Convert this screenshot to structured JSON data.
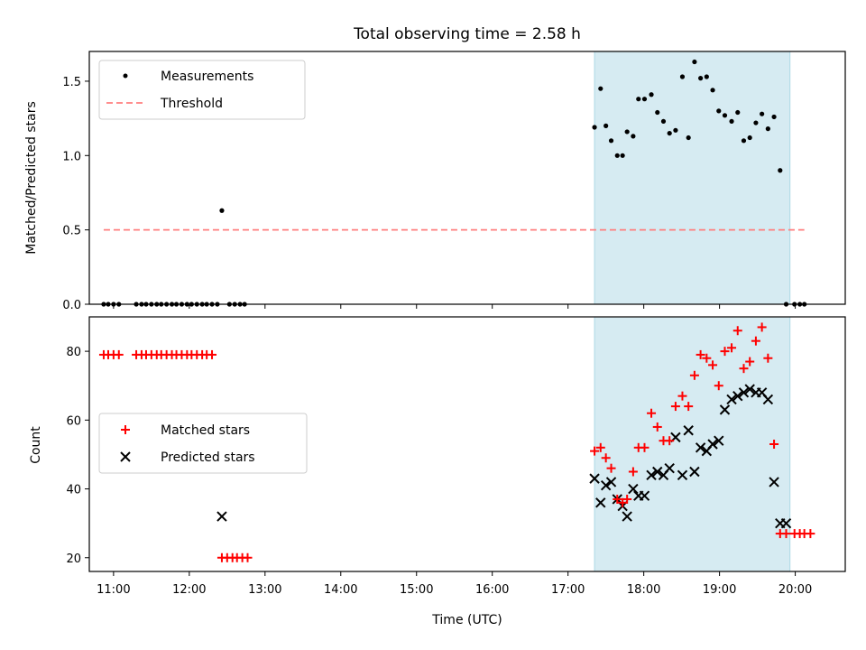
{
  "chart_data": [
    {
      "type": "scatter",
      "panel": "top",
      "title": "Total observing time = 2.58 h",
      "ylabel": "Matched/Predicted stars",
      "xlabel": "",
      "ylim": [
        0,
        1.7
      ],
      "xlim": [
        10.68,
        20.66
      ],
      "yticks": [
        0.0,
        0.5,
        1.0,
        1.5
      ],
      "ytick_labels": [
        "0.0",
        "0.5",
        "1.0",
        "1.5"
      ],
      "highlight": {
        "x_start": 17.35,
        "x_end": 19.93,
        "color": "#add8e6"
      },
      "legend": {
        "position": "top-left",
        "entries": [
          "Measurements",
          "Threshold"
        ]
      },
      "series": [
        {
          "name": "Measurements",
          "color": "#000000",
          "marker": "dot",
          "x": [
            10.87,
            10.93,
            11.0,
            11.07,
            11.3,
            11.37,
            11.43,
            11.5,
            11.57,
            11.63,
            11.7,
            11.77,
            11.83,
            11.9,
            11.97,
            12.03,
            12.1,
            12.17,
            12.23,
            12.3,
            12.37,
            12.43,
            12.53,
            12.6,
            12.67,
            12.73,
            17.35,
            17.43,
            17.5,
            17.57,
            17.65,
            17.72,
            17.78,
            17.86,
            17.93,
            18.01,
            18.1,
            18.18,
            18.26,
            18.34,
            18.42,
            18.51,
            18.59,
            18.67,
            18.75,
            18.83,
            18.91,
            18.99,
            19.07,
            19.16,
            19.24,
            19.32,
            19.4,
            19.48,
            19.56,
            19.64,
            19.72,
            19.8,
            19.88
          ],
          "y": [
            0,
            0,
            0,
            0,
            0,
            0,
            0,
            0,
            0,
            0,
            0,
            0,
            0,
            0,
            0,
            0,
            0,
            0,
            0,
            0,
            0,
            0.63,
            0,
            0,
            0,
            0,
            1.19,
            1.45,
            1.2,
            1.1,
            1.0,
            1.0,
            1.16,
            1.13,
            1.38,
            1.38,
            1.41,
            1.29,
            1.23,
            1.15,
            1.17,
            1.53,
            1.12,
            1.63,
            1.52,
            1.53,
            1.44,
            1.3,
            1.27,
            1.23,
            1.29,
            1.1,
            1.12,
            1.22,
            1.28,
            1.18,
            1.26,
            0.9,
            0
          ]
        },
        {
          "name": "Threshold",
          "color": "#ff7f7f",
          "style": "dashed",
          "x": [
            10.87,
            20.12
          ],
          "y": [
            0.5,
            0.5
          ]
        }
      ],
      "extra_points_after": {
        "x": [
          19.99,
          20.06,
          20.12
        ],
        "y": [
          0,
          0,
          0
        ]
      }
    },
    {
      "type": "scatter",
      "panel": "bottom",
      "title": "",
      "ylabel": "Count",
      "xlabel": "Time (UTC)",
      "ylim": [
        16,
        90
      ],
      "xlim": [
        10.68,
        20.66
      ],
      "yticks": [
        20,
        40,
        60,
        80
      ],
      "ytick_labels": [
        "20",
        "40",
        "60",
        "80"
      ],
      "xticks": [
        11,
        12,
        13,
        14,
        15,
        16,
        17,
        18,
        19,
        20
      ],
      "xtick_labels": [
        "11:00",
        "12:00",
        "13:00",
        "14:00",
        "15:00",
        "16:00",
        "17:00",
        "18:00",
        "19:00",
        "20:00"
      ],
      "highlight": {
        "x_start": 17.35,
        "x_end": 19.93,
        "color": "#add8e6"
      },
      "legend": {
        "position": "center-left",
        "entries": [
          "Matched stars",
          "Predicted stars"
        ]
      },
      "series": [
        {
          "name": "Matched stars",
          "color": "#ff0000",
          "marker": "plus",
          "x": [
            10.87,
            10.93,
            11.0,
            11.07,
            11.3,
            11.37,
            11.43,
            11.5,
            11.57,
            11.63,
            11.7,
            11.77,
            11.83,
            11.9,
            11.97,
            12.03,
            12.1,
            12.17,
            12.23,
            12.3,
            12.43,
            12.5,
            12.57,
            12.63,
            12.7,
            12.77,
            17.35,
            17.43,
            17.5,
            17.57,
            17.65,
            17.72,
            17.78,
            17.86,
            17.93,
            18.01,
            18.1,
            18.18,
            18.26,
            18.34,
            18.42,
            18.51,
            18.59,
            18.67,
            18.75,
            18.83,
            18.91,
            18.99,
            19.07,
            19.16,
            19.24,
            19.32,
            19.4,
            19.48,
            19.56,
            19.64,
            19.72,
            19.8,
            19.88,
            19.99,
            20.06,
            20.12,
            20.2
          ],
          "y": [
            79,
            79,
            79,
            79,
            79,
            79,
            79,
            79,
            79,
            79,
            79,
            79,
            79,
            79,
            79,
            79,
            79,
            79,
            79,
            79,
            20,
            20,
            20,
            20,
            20,
            20,
            51,
            52,
            49,
            46,
            37,
            36,
            37,
            45,
            52,
            52,
            62,
            58,
            54,
            54,
            64,
            67,
            64,
            73,
            79,
            78,
            76,
            70,
            80,
            81,
            86,
            75,
            77,
            83,
            87,
            78,
            53,
            27,
            27,
            27,
            27,
            27,
            27
          ]
        },
        {
          "name": "Predicted stars",
          "color": "#000000",
          "marker": "x",
          "x": [
            12.43,
            17.35,
            17.43,
            17.5,
            17.57,
            17.65,
            17.72,
            17.78,
            17.86,
            17.93,
            18.01,
            18.1,
            18.18,
            18.26,
            18.34,
            18.42,
            18.51,
            18.59,
            18.67,
            18.75,
            18.83,
            18.91,
            18.99,
            19.07,
            19.16,
            19.24,
            19.32,
            19.4,
            19.48,
            19.56,
            19.64,
            19.72,
            19.8,
            19.88
          ],
          "y": [
            32,
            43,
            36,
            41,
            42,
            37,
            35,
            32,
            40,
            38,
            38,
            44,
            45,
            44,
            46,
            55,
            44,
            57,
            45,
            52,
            51,
            53,
            54,
            63,
            66,
            67,
            68,
            69,
            68,
            68,
            66,
            42,
            30,
            30
          ]
        }
      ]
    }
  ]
}
